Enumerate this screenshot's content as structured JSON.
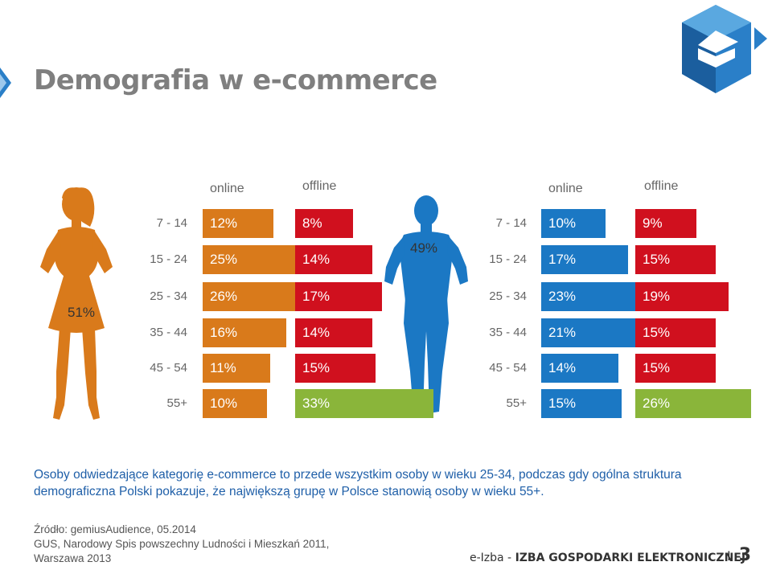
{
  "title": "Demografia w e-commerce",
  "colors": {
    "female_online": "#d97a1b",
    "female_offline": "#d0101e",
    "female_55_offline": "#8ab53a",
    "male_online": "#1b78c4",
    "male_offline": "#d0101e",
    "male_55_offline": "#8ab53a",
    "figure_female": "#d97a1b",
    "figure_male": "#1b78c4"
  },
  "chart_data": [
    {
      "type": "bar",
      "group_share": "51%",
      "columns": [
        "online",
        "offline"
      ],
      "categories": [
        "7 - 14",
        "15 - 24",
        "25 - 34",
        "35 - 44",
        "45 - 54",
        "55+"
      ],
      "series": [
        {
          "name": "online",
          "values": [
            12,
            25,
            26,
            16,
            11,
            10
          ],
          "labels": [
            "12%",
            "25%",
            "26%",
            "16%",
            "11%",
            "10%"
          ]
        },
        {
          "name": "offline",
          "values": [
            8,
            14,
            17,
            14,
            15,
            33
          ],
          "labels": [
            "8%",
            "14%",
            "17%",
            "14%",
            "15%",
            "33%"
          ]
        }
      ]
    },
    {
      "type": "bar",
      "group_share": "49%",
      "columns": [
        "online",
        "offline"
      ],
      "categories": [
        "7 - 14",
        "15 - 24",
        "25 - 34",
        "35 - 44",
        "45 - 54",
        "55+"
      ],
      "series": [
        {
          "name": "online",
          "values": [
            10,
            17,
            23,
            21,
            14,
            15
          ],
          "labels": [
            "10%",
            "17%",
            "23%",
            "21%",
            "14%",
            "15%"
          ]
        },
        {
          "name": "offline",
          "values": [
            9,
            15,
            19,
            15,
            15,
            26
          ],
          "labels": [
            "9%",
            "15%",
            "19%",
            "15%",
            "15%",
            "26%"
          ]
        }
      ]
    }
  ],
  "description": "Osoby odwiedzające kategorię e-commerce to przede wszystkim osoby w wieku 25-34, podczas gdy ogólna struktura demograficzna Polski pokazuje, że największą grupę w Polsce stanowią osoby w wieku 55+.",
  "source": {
    "line1": "Źródło: gemiusAudience, 05.2014",
    "line2": "GUS,  Narodowy Spis powszechny Ludności i Mieszkań 2011,",
    "line3": "Warszawa 2013"
  },
  "footer": {
    "brand_prefix": "e-Izba - ",
    "brand_name": "IZBA GOSPODARKI ELEKTRONICZNEJ",
    "separator": "I",
    "page_number": "3"
  }
}
